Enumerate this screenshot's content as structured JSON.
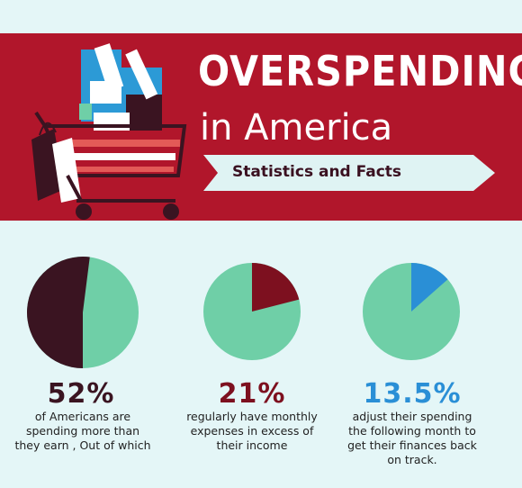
{
  "header": {
    "title_line1": "OVERSPENDING",
    "title_line2": "in America",
    "ribbon_label": "Statistics and Facts"
  },
  "colors": {
    "banner": "#b1162b",
    "background": "#e4f6f7",
    "pie_base": "#6fcfa7",
    "stat1": "#3a1421",
    "stat2": "#7d101f",
    "stat3": "#2a8fd6",
    "ribbon": "#dff3f3"
  },
  "chart_data": [
    {
      "type": "pie",
      "percent": 52,
      "percent_label": "52%",
      "description_lines": [
        "of Americans are",
        "spending more than",
        "they earn , Out of which"
      ]
    },
    {
      "type": "pie",
      "percent": 21,
      "percent_label": "21%",
      "description_lines": [
        "regularly have monthly",
        "expenses in excess of",
        "their income"
      ]
    },
    {
      "type": "pie",
      "percent": 13.5,
      "percent_label": "13.5%",
      "description_lines": [
        "adjust their spending",
        "the following month to",
        "get their finances back",
        "on track."
      ]
    }
  ]
}
